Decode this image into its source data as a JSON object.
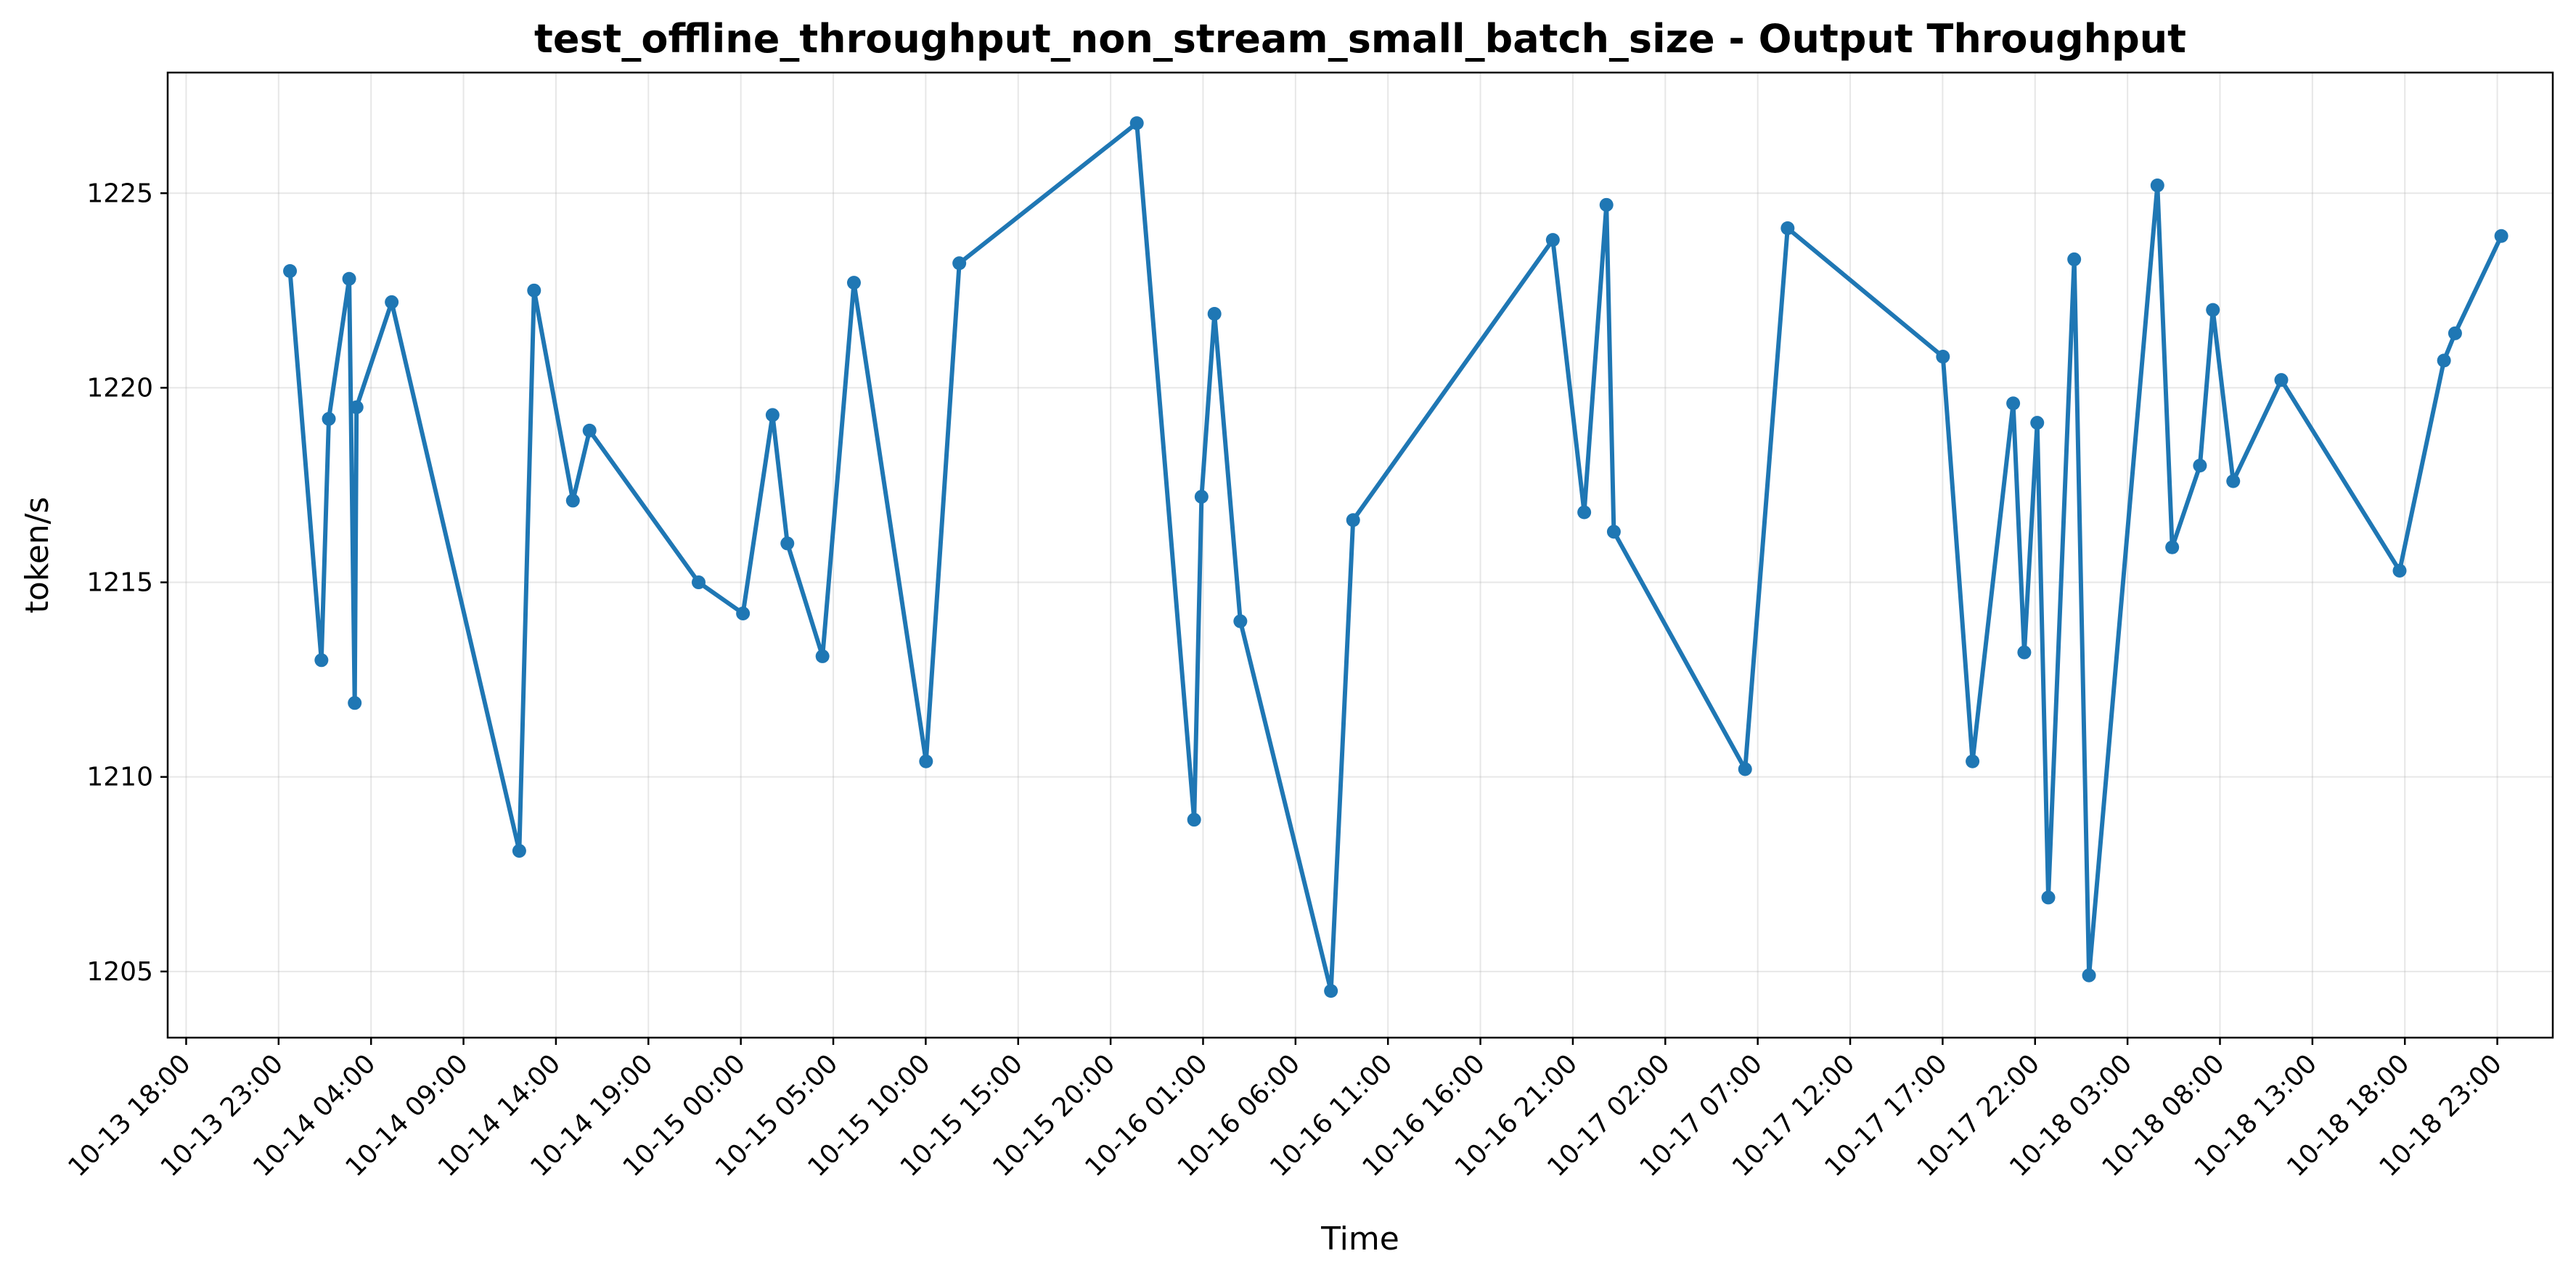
{
  "chart_data": {
    "type": "line",
    "title": "test_offline_throughput_non_stream_small_batch_size - Output Throughput",
    "xlabel": "Time",
    "ylabel": "token/s",
    "ylim": [
      1203.3,
      1228.1
    ],
    "yticks": [
      1205,
      1210,
      1215,
      1220,
      1225
    ],
    "xlim": [
      "2024-10-13T17:00",
      "2024-10-19T02:00"
    ],
    "xticks": [
      "10-13 18:00",
      "10-13 23:00",
      "10-14 04:00",
      "10-14 09:00",
      "10-14 14:00",
      "10-14 19:00",
      "10-15 00:00",
      "10-15 05:00",
      "10-15 10:00",
      "10-15 15:00",
      "10-15 20:00",
      "10-16 01:00",
      "10-16 06:00",
      "10-16 11:00",
      "10-16 16:00",
      "10-16 21:00",
      "10-17 02:00",
      "10-17 07:00",
      "10-17 12:00",
      "10-17 17:00",
      "10-17 22:00",
      "10-18 03:00",
      "10-18 08:00",
      "10-18 13:00",
      "10-18 18:00",
      "10-18 23:00"
    ],
    "xtick_times": [
      "2024-10-13T18:00",
      "2024-10-13T23:00",
      "2024-10-14T04:00",
      "2024-10-14T09:00",
      "2024-10-14T14:00",
      "2024-10-14T19:00",
      "2024-10-15T00:00",
      "2024-10-15T05:00",
      "2024-10-15T10:00",
      "2024-10-15T15:00",
      "2024-10-15T20:00",
      "2024-10-16T01:00",
      "2024-10-16T06:00",
      "2024-10-16T11:00",
      "2024-10-16T16:00",
      "2024-10-16T21:00",
      "2024-10-17T02:00",
      "2024-10-17T07:00",
      "2024-10-17T12:00",
      "2024-10-17T17:00",
      "2024-10-17T22:00",
      "2024-10-18T03:00",
      "2024-10-18T08:00",
      "2024-10-18T13:00",
      "2024-10-18T18:00",
      "2024-10-18T23:00"
    ],
    "grid": true,
    "color": "#1f77b4",
    "series": [
      {
        "points": [
          [
            "2024-10-13T23:37",
            1223.0
          ],
          [
            "2024-10-14T01:19",
            1213.0
          ],
          [
            "2024-10-14T01:43",
            1219.2
          ],
          [
            "2024-10-14T02:49",
            1222.8
          ],
          [
            "2024-10-14T03:07",
            1211.9
          ],
          [
            "2024-10-14T03:13",
            1219.5
          ],
          [
            "2024-10-14T05:07",
            1222.2
          ],
          [
            "2024-10-14T12:01",
            1208.1
          ],
          [
            "2024-10-14T12:49",
            1222.5
          ],
          [
            "2024-10-14T14:55",
            1217.1
          ],
          [
            "2024-10-14T15:49",
            1218.9
          ],
          [
            "2024-10-14T21:43",
            1215.0
          ],
          [
            "2024-10-15T00:07",
            1214.2
          ],
          [
            "2024-10-15T01:43",
            1219.3
          ],
          [
            "2024-10-15T02:31",
            1216.0
          ],
          [
            "2024-10-15T04:25",
            1213.1
          ],
          [
            "2024-10-15T06:07",
            1222.7
          ],
          [
            "2024-10-15T10:01",
            1210.4
          ],
          [
            "2024-10-15T11:49",
            1223.2
          ],
          [
            "2024-10-15T21:25",
            1226.8
          ],
          [
            "2024-10-16T00:31",
            1208.9
          ],
          [
            "2024-10-16T00:55",
            1217.2
          ],
          [
            "2024-10-16T01:37",
            1221.9
          ],
          [
            "2024-10-16T03:01",
            1214.0
          ],
          [
            "2024-10-16T07:55",
            1204.5
          ],
          [
            "2024-10-16T09:07",
            1216.6
          ],
          [
            "2024-10-16T19:55",
            1223.8
          ],
          [
            "2024-10-16T21:37",
            1216.8
          ],
          [
            "2024-10-16T22:49",
            1224.7
          ],
          [
            "2024-10-16T23:13",
            1216.3
          ],
          [
            "2024-10-17T06:19",
            1210.2
          ],
          [
            "2024-10-17T08:37",
            1224.1
          ],
          [
            "2024-10-17T17:01",
            1220.8
          ],
          [
            "2024-10-17T18:37",
            1210.4
          ],
          [
            "2024-10-17T20:49",
            1219.6
          ],
          [
            "2024-10-17T21:25",
            1213.2
          ],
          [
            "2024-10-17T22:07",
            1219.1
          ],
          [
            "2024-10-17T22:43",
            1206.9
          ],
          [
            "2024-10-18T00:07",
            1223.3
          ],
          [
            "2024-10-18T00:55",
            1204.9
          ],
          [
            "2024-10-18T04:37",
            1225.2
          ],
          [
            "2024-10-18T05:25",
            1215.9
          ],
          [
            "2024-10-18T06:55",
            1218.0
          ],
          [
            "2024-10-18T07:37",
            1222.0
          ],
          [
            "2024-10-18T08:43",
            1217.6
          ],
          [
            "2024-10-18T11:19",
            1220.2
          ],
          [
            "2024-10-18T17:43",
            1215.3
          ],
          [
            "2024-10-18T20:07",
            1220.7
          ],
          [
            "2024-10-18T20:43",
            1221.4
          ],
          [
            "2024-10-18T23:13",
            1223.9
          ]
        ]
      }
    ]
  }
}
